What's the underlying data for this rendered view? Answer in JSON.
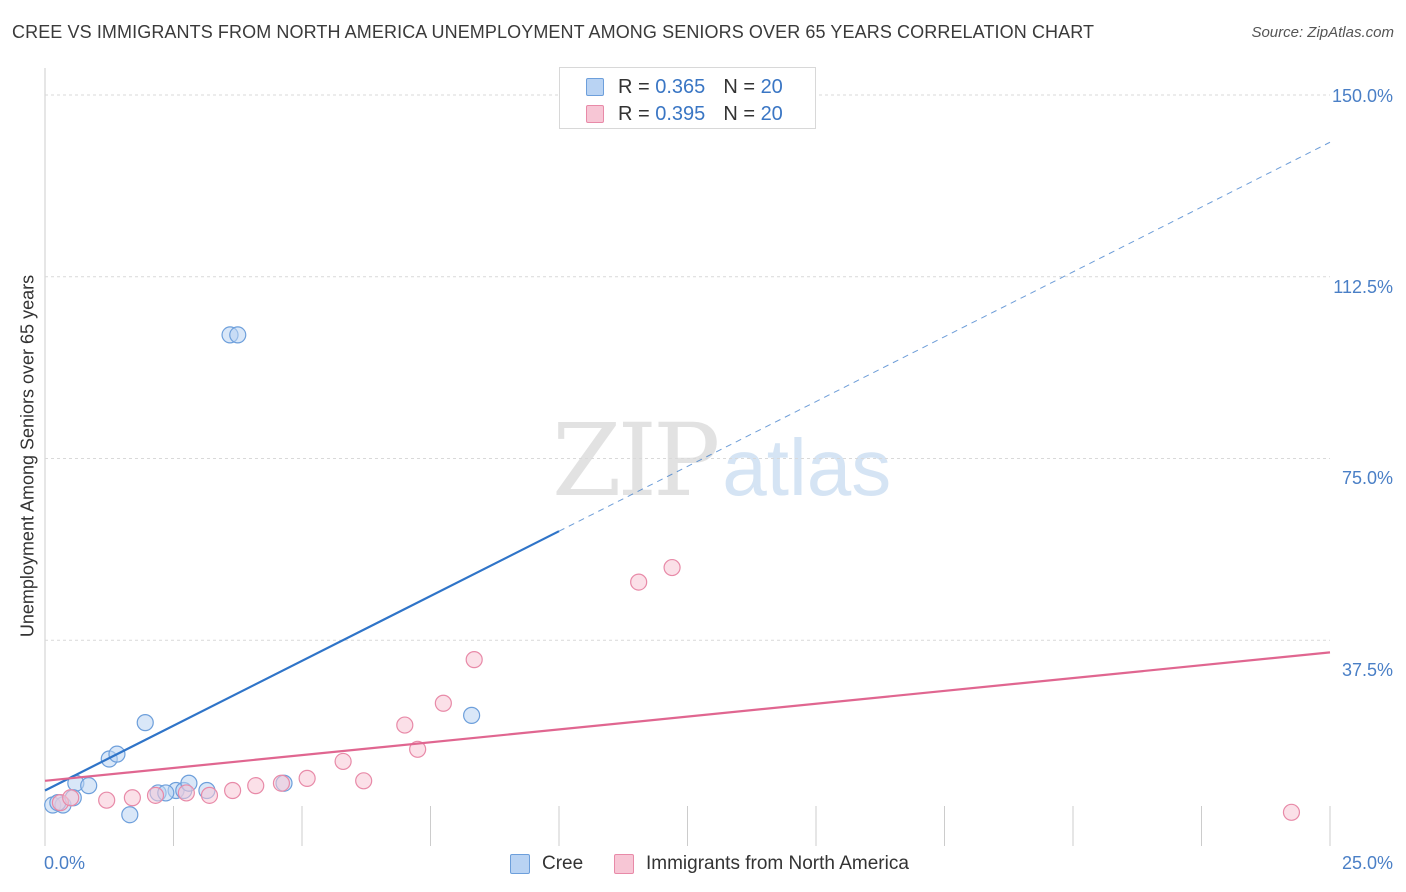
{
  "header": {
    "title": "CREE VS IMMIGRANTS FROM NORTH AMERICA UNEMPLOYMENT AMONG SENIORS OVER 65 YEARS CORRELATION CHART",
    "source": "Source: ZipAtlas.com"
  },
  "watermark": {
    "zip": "ZIP",
    "atlas": "atlas"
  },
  "legend": {
    "cree": {
      "r_label": "R = ",
      "r_value": "0.365",
      "n_label": "N = ",
      "n_value": "20"
    },
    "immigrants": {
      "r_label": "R = ",
      "r_value": "0.395",
      "n_label": "N = ",
      "n_value": "20"
    }
  },
  "colors": {
    "cree_fill": "#b9d3f3",
    "cree_stroke": "#6d9fdb",
    "cree_line": "#2f74c8",
    "imm_fill": "#f7c6d5",
    "imm_stroke": "#e88aa8",
    "imm_line": "#e06690",
    "grid": "#d9d9d9",
    "tick_text": "#4a7fc6"
  },
  "chart_data": {
    "type": "scatter",
    "title": "CREE VS IMMIGRANTS FROM NORTH AMERICA UNEMPLOYMENT AMONG SENIORS OVER 65 YEARS CORRELATION CHART",
    "xlabel": "",
    "ylabel": "Unemployment Among Seniors over 65 years",
    "xlim": [
      0,
      25
    ],
    "ylim": [
      0,
      150
    ],
    "x_ticks": [
      {
        "value": 0,
        "label": "0.0%"
      },
      {
        "value": 25,
        "label": "25.0%"
      }
    ],
    "y_ticks": [
      {
        "value": 37.5,
        "label": "37.5%"
      },
      {
        "value": 75,
        "label": "75.0%"
      },
      {
        "value": 112.5,
        "label": "112.5%"
      },
      {
        "value": 150,
        "label": "150.0%"
      }
    ],
    "grid": true,
    "legend_position": "top-center",
    "series": [
      {
        "name": "Cree",
        "color_key": "cree",
        "points": [
          [
            0.15,
            3.5
          ],
          [
            0.35,
            3.5
          ],
          [
            0.6,
            8.0
          ],
          [
            0.85,
            7.5
          ],
          [
            1.25,
            13.0
          ],
          [
            1.4,
            14.0
          ],
          [
            1.65,
            1.5
          ],
          [
            1.95,
            20.5
          ],
          [
            2.2,
            6.0
          ],
          [
            2.55,
            6.5
          ],
          [
            2.7,
            6.5
          ],
          [
            2.8,
            8.0
          ],
          [
            3.15,
            6.5
          ],
          [
            3.6,
            100.5
          ],
          [
            3.75,
            100.5
          ],
          [
            4.65,
            8.0
          ],
          [
            8.3,
            22.0
          ],
          [
            0.25,
            4.0
          ],
          [
            0.55,
            5.0
          ],
          [
            2.35,
            6.0
          ]
        ],
        "trend": {
          "x0": 0,
          "y0": 6.5,
          "x1": 10,
          "y1": 60,
          "extend_to": 25
        }
      },
      {
        "name": "Immigrants from North America",
        "color_key": "imm",
        "points": [
          [
            0.3,
            4.0
          ],
          [
            0.5,
            5.0
          ],
          [
            1.2,
            4.5
          ],
          [
            1.7,
            5.0
          ],
          [
            2.15,
            5.5
          ],
          [
            2.75,
            6.0
          ],
          [
            3.2,
            5.5
          ],
          [
            3.65,
            6.5
          ],
          [
            4.1,
            7.5
          ],
          [
            4.6,
            8.0
          ],
          [
            5.1,
            9.0
          ],
          [
            5.8,
            12.5
          ],
          [
            6.2,
            8.5
          ],
          [
            7.0,
            20.0
          ],
          [
            7.25,
            15.0
          ],
          [
            7.75,
            24.5
          ],
          [
            8.35,
            33.5
          ],
          [
            11.55,
            49.5
          ],
          [
            12.2,
            52.5
          ],
          [
            24.25,
            2.0
          ]
        ],
        "trend": {
          "x0": 0,
          "y0": 8.5,
          "x1": 25,
          "y1": 35
        }
      }
    ]
  },
  "bottom_legend": {
    "cree_label": "Cree",
    "immigrants_label": "Immigrants from North America"
  }
}
